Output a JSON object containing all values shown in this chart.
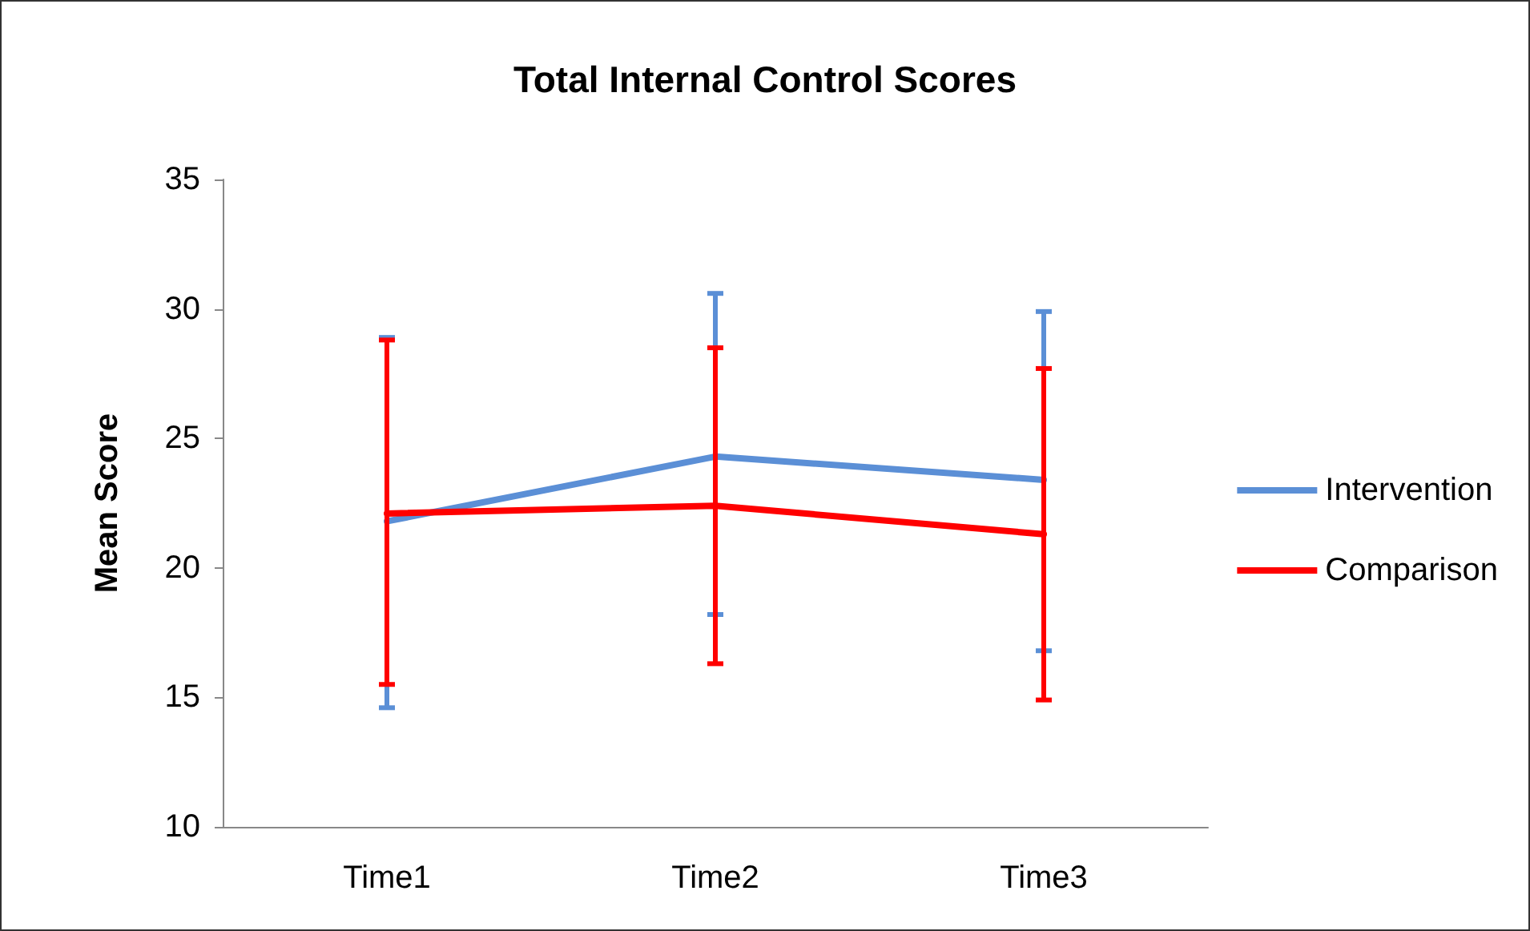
{
  "chart_data": {
    "type": "line",
    "title": "Total Internal Control Scores",
    "ylabel": "Mean Score",
    "categories": [
      "Time1",
      "Time2",
      "Time3"
    ],
    "series": [
      {
        "name": "Intervention",
        "color": "#5b8fd6",
        "values": [
          21.8,
          24.3,
          23.4
        ],
        "errors": [
          [
            14.6,
            28.9
          ],
          [
            18.2,
            30.6
          ],
          [
            16.8,
            29.9
          ]
        ]
      },
      {
        "name": "Comparison",
        "color": "#ff0000",
        "values": [
          22.1,
          22.4,
          21.3
        ],
        "errors": [
          [
            15.5,
            28.8
          ],
          [
            16.3,
            28.5
          ],
          [
            14.9,
            27.7
          ]
        ]
      }
    ],
    "ylim": [
      10,
      35
    ],
    "yticks": [
      10,
      15,
      20,
      25,
      30,
      35
    ],
    "grid": false,
    "legend": "right",
    "marker": "none",
    "line_style": "solid"
  }
}
